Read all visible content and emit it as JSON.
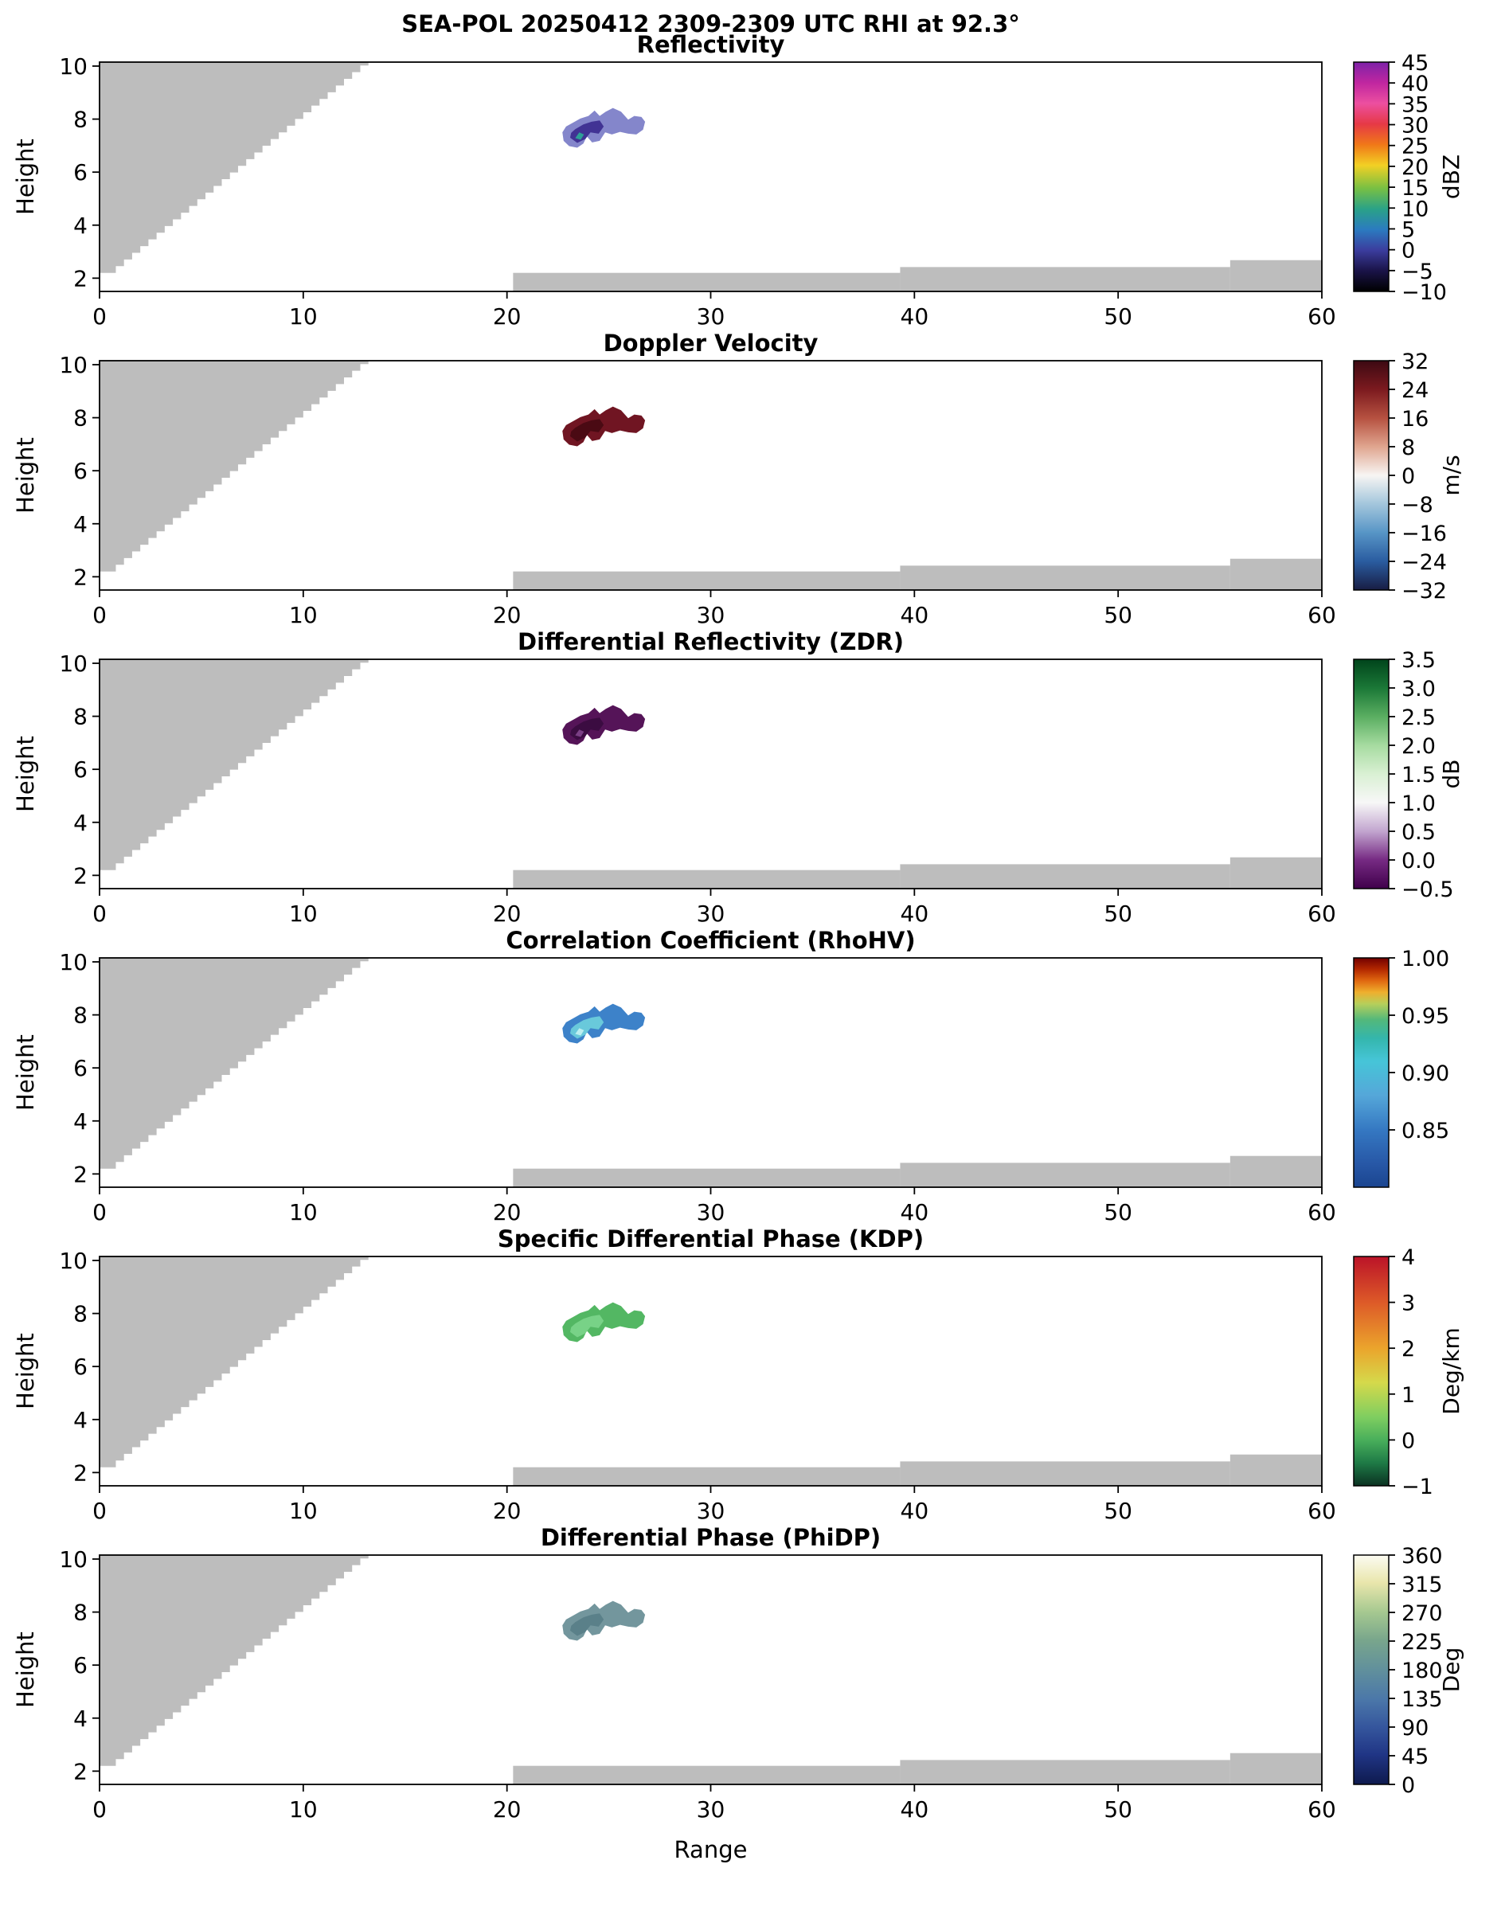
{
  "figure_title": "SEA-POL 20250412 2309-2309 UTC RHI at 92.3°",
  "xlabel": "Range",
  "ylabel": "Height",
  "chart_data": {
    "type": "heatmap",
    "subtype": "radar-RHI-multipanel",
    "x_range": [
      0,
      60
    ],
    "y_range": [
      1.5,
      10.15
    ],
    "x_ticks": [
      0,
      10,
      20,
      30,
      40,
      50,
      60
    ],
    "x_tick_labels": [
      "0",
      "10",
      "20",
      "30",
      "40",
      "50",
      "60"
    ],
    "y_ticks": [
      2,
      4,
      6,
      8,
      10
    ],
    "y_tick_labels": [
      "2",
      "4",
      "6",
      "8",
      "10"
    ],
    "grid": false,
    "legend_position": "right-colorbar",
    "nodata_mask": {
      "color": "#bdbdbd",
      "wedge": {
        "x0": 0.4,
        "y0": 2.2,
        "x1": 13.0,
        "step": 0.4
      },
      "bottom_strips": [
        {
          "x0": 20.3,
          "x1": 39.3,
          "top": 2.2
        },
        {
          "x0": 39.3,
          "x1": 55.5,
          "top": 2.42
        },
        {
          "x0": 55.5,
          "x1": 60.0,
          "top": 2.68
        }
      ]
    },
    "echo_region": {
      "x_span": [
        22.7,
        26.8
      ],
      "height_span": [
        6.9,
        8.45
      ],
      "description": "single isolated elevated echo, same footprint in every panel"
    },
    "blob": {
      "outer": [
        [
          22.72,
          7.5
        ],
        [
          22.78,
          7.18
        ],
        [
          23.05,
          6.98
        ],
        [
          23.45,
          6.92
        ],
        [
          23.75,
          7.08
        ],
        [
          23.92,
          7.35
        ],
        [
          24.18,
          7.12
        ],
        [
          24.55,
          7.18
        ],
        [
          24.82,
          7.5
        ],
        [
          25.15,
          7.42
        ],
        [
          25.55,
          7.52
        ],
        [
          25.95,
          7.45
        ],
        [
          26.35,
          7.42
        ],
        [
          26.68,
          7.6
        ],
        [
          26.78,
          7.9
        ],
        [
          26.6,
          8.08
        ],
        [
          26.25,
          8.12
        ],
        [
          25.95,
          7.98
        ],
        [
          25.6,
          8.28
        ],
        [
          25.2,
          8.42
        ],
        [
          24.85,
          8.28
        ],
        [
          24.55,
          8.12
        ],
        [
          24.3,
          8.32
        ],
        [
          24.0,
          8.12
        ],
        [
          23.6,
          8.02
        ],
        [
          23.2,
          7.85
        ],
        [
          22.9,
          7.72
        ]
      ],
      "inner": [
        [
          23.1,
          7.3
        ],
        [
          23.45,
          7.1
        ],
        [
          23.85,
          7.25
        ],
        [
          24.1,
          7.5
        ],
        [
          24.5,
          7.45
        ],
        [
          24.75,
          7.72
        ],
        [
          24.55,
          7.95
        ],
        [
          24.15,
          7.9
        ],
        [
          23.75,
          7.8
        ],
        [
          23.35,
          7.62
        ],
        [
          23.15,
          7.48
        ]
      ],
      "spot": [
        [
          23.35,
          7.28
        ],
        [
          23.62,
          7.22
        ],
        [
          23.78,
          7.42
        ],
        [
          23.55,
          7.5
        ]
      ]
    },
    "panels": [
      {
        "id": "reflectivity",
        "title": "Reflectivity",
        "unit": "dBZ",
        "echo_value_range": [
          -5,
          10
        ],
        "cbar_ticks": [
          [
            "45",
            0
          ],
          [
            "40",
            0.0909
          ],
          [
            "35",
            0.1818
          ],
          [
            "30",
            0.2727
          ],
          [
            "25",
            0.3636
          ],
          [
            "20",
            0.4545
          ],
          [
            "15",
            0.5455
          ],
          [
            "10",
            0.6364
          ],
          [
            "5",
            0.7273
          ],
          [
            "0",
            0.8182
          ],
          [
            "−5",
            0.9091
          ],
          [
            "−10",
            1
          ]
        ],
        "cbar_stops": [
          [
            0,
            "#7E22A8"
          ],
          [
            0.09,
            "#C026A0"
          ],
          [
            0.18,
            "#EC4FA0"
          ],
          [
            0.27,
            "#E63946"
          ],
          [
            0.36,
            "#F07818"
          ],
          [
            0.45,
            "#F2D024"
          ],
          [
            0.55,
            "#78C043"
          ],
          [
            0.64,
            "#2AA287"
          ],
          [
            0.73,
            "#2B7BC0"
          ],
          [
            0.82,
            "#3B3D9E"
          ],
          [
            0.91,
            "#1A1348"
          ],
          [
            1,
            "#000000"
          ]
        ],
        "blob_colors": {
          "outer": "#8486CB",
          "inner": "#413394",
          "spot": "#2E9F97"
        }
      },
      {
        "id": "doppler-velocity",
        "title": "Doppler Velocity",
        "unit": "m/s",
        "echo_value_range": [
          24,
          32
        ],
        "cbar_ticks": [
          [
            "32",
            0
          ],
          [
            "24",
            0.125
          ],
          [
            "16",
            0.25
          ],
          [
            "8",
            0.375
          ],
          [
            "0",
            0.5
          ],
          [
            "−8",
            0.625
          ],
          [
            "−16",
            0.75
          ],
          [
            "−24",
            0.875
          ],
          [
            "−32",
            1
          ]
        ],
        "cbar_stops": [
          [
            0,
            "#3C0912"
          ],
          [
            0.125,
            "#7C1A1F"
          ],
          [
            0.25,
            "#B65140"
          ],
          [
            0.375,
            "#E0A58F"
          ],
          [
            0.5,
            "#F7F5F3"
          ],
          [
            0.625,
            "#A3C6DC"
          ],
          [
            0.75,
            "#5795C6"
          ],
          [
            0.875,
            "#2A5CA0"
          ],
          [
            1,
            "#181D43"
          ]
        ],
        "blob_colors": {
          "outer": "#701522",
          "inner": "#4A0A13"
        }
      },
      {
        "id": "zdr",
        "title": "Differential Reflectivity (ZDR)",
        "unit": "dB",
        "echo_value_range": [
          -0.5,
          0.3
        ],
        "cbar_ticks": [
          [
            "3.5",
            0
          ],
          [
            "3.0",
            0.125
          ],
          [
            "2.5",
            0.25
          ],
          [
            "2.0",
            0.375
          ],
          [
            "1.5",
            0.5
          ],
          [
            "1.0",
            0.625
          ],
          [
            "0.5",
            0.75
          ],
          [
            "0.0",
            0.875
          ],
          [
            "−0.5",
            1
          ]
        ],
        "cbar_stops": [
          [
            0,
            "#00441B"
          ],
          [
            0.125,
            "#1B7837"
          ],
          [
            0.25,
            "#5AAE61"
          ],
          [
            0.375,
            "#A6DBA0"
          ],
          [
            0.5,
            "#D9F0D3"
          ],
          [
            0.625,
            "#F7F7F7"
          ],
          [
            0.75,
            "#C2A5CF"
          ],
          [
            0.875,
            "#762A83"
          ],
          [
            1,
            "#40004B"
          ]
        ],
        "blob_colors": {
          "outer": "#551458",
          "inner": "#3B0C41",
          "spot": "#7A3F85"
        }
      },
      {
        "id": "rhohv",
        "title": "Correlation Coefficient (RhoHV)",
        "unit": "",
        "echo_value_range": [
          0.95,
          0.99
        ],
        "cbar_ticks": [
          [
            "1.00",
            0
          ],
          [
            "0.95",
            0.25
          ],
          [
            "0.90",
            0.5
          ],
          [
            "0.85",
            0.75
          ]
        ],
        "cbar_stops": [
          [
            0,
            "#720000"
          ],
          [
            0.05,
            "#B32800"
          ],
          [
            0.1,
            "#E06810"
          ],
          [
            0.15,
            "#EFAF2E"
          ],
          [
            0.2,
            "#B7CF5A"
          ],
          [
            0.27,
            "#53B87B"
          ],
          [
            0.35,
            "#34B6AC"
          ],
          [
            0.45,
            "#46C5D8"
          ],
          [
            0.6,
            "#55A7D9"
          ],
          [
            0.75,
            "#3578C2"
          ],
          [
            0.9,
            "#2757A6"
          ],
          [
            1,
            "#1B4590"
          ]
        ],
        "blob_colors": {
          "outer": "#3D82C9",
          "inner": "#69C9DB",
          "spot": "#BDEFF1"
        }
      },
      {
        "id": "kdp",
        "title": "Specific Differential Phase (KDP)",
        "unit": "Deg/km",
        "echo_value_range": [
          0,
          0.5
        ],
        "cbar_ticks": [
          [
            "4",
            0
          ],
          [
            "3",
            0.2
          ],
          [
            "2",
            0.4
          ],
          [
            "1",
            0.6
          ],
          [
            "0",
            0.8
          ],
          [
            "−1",
            1
          ]
        ],
        "cbar_stops": [
          [
            0,
            "#BB1328"
          ],
          [
            0.2,
            "#DD5A28"
          ],
          [
            0.4,
            "#EBA42C"
          ],
          [
            0.55,
            "#D5D94B"
          ],
          [
            0.7,
            "#7FCE60"
          ],
          [
            0.8,
            "#49AF5B"
          ],
          [
            0.9,
            "#1E7A46"
          ],
          [
            1,
            "#0B3222"
          ]
        ],
        "blob_colors": {
          "outer": "#53B763",
          "inner": "#78D287"
        }
      },
      {
        "id": "phidp",
        "title": "Differential Phase (PhiDP)",
        "unit": "Deg",
        "echo_value_range": [
          180,
          225
        ],
        "cbar_ticks": [
          [
            "360",
            0
          ],
          [
            "315",
            0.125
          ],
          [
            "270",
            0.25
          ],
          [
            "225",
            0.375
          ],
          [
            "180",
            0.5
          ],
          [
            "135",
            0.625
          ],
          [
            "90",
            0.75
          ],
          [
            "45",
            0.875
          ],
          [
            "0",
            1
          ]
        ],
        "cbar_stops": [
          [
            0,
            "#FCFBF2"
          ],
          [
            0.12,
            "#E9E6AC"
          ],
          [
            0.25,
            "#A5C890"
          ],
          [
            0.37,
            "#79A68C"
          ],
          [
            0.5,
            "#61909C"
          ],
          [
            0.63,
            "#4B77A9"
          ],
          [
            0.75,
            "#35569D"
          ],
          [
            0.87,
            "#203585"
          ],
          [
            1,
            "#0E1A4E"
          ]
        ],
        "blob_colors": {
          "outer": "#73969D",
          "inner": "#5A8089"
        }
      }
    ]
  }
}
